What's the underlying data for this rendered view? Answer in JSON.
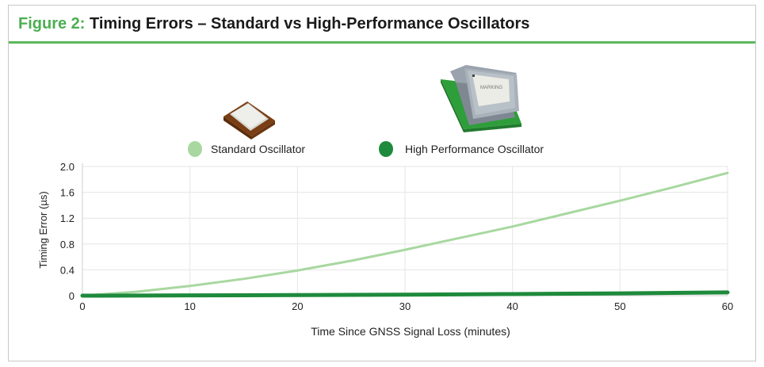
{
  "figure": {
    "label": "Figure 2:",
    "title": "Timing Errors – Standard vs High-Performance Oscillators"
  },
  "product_images": {
    "std_icon": "crystal-oscillator-package-icon",
    "hp_icon": "ocxo-module-icon",
    "hp_marking": "MARKING"
  },
  "chart_data": {
    "type": "line",
    "title": "",
    "xlabel": "Time Since GNSS Signal Loss (minutes)",
    "ylabel": "Timing Error (µs)",
    "xlim": [
      0,
      60
    ],
    "ylim": [
      0,
      2.0
    ],
    "x_ticks": [
      0,
      10,
      20,
      30,
      40,
      50,
      60
    ],
    "x_tick_labels": [
      "0",
      "10",
      "20",
      "30",
      "40",
      "50",
      "60"
    ],
    "y_ticks": [
      0,
      0.4,
      0.8,
      1.2,
      1.6,
      2.0
    ],
    "y_tick_labels": [
      "0",
      "0.4",
      "0.8",
      "1.2",
      "1.6",
      "2.0"
    ],
    "grid": true,
    "legend_position": "top-center",
    "x": [
      0,
      5,
      10,
      15,
      20,
      25,
      30,
      35,
      40,
      45,
      50,
      55,
      60
    ],
    "series": [
      {
        "name": "Standard Oscillator",
        "color": "#a8d8a0",
        "values": [
          0,
          0.06,
          0.15,
          0.26,
          0.39,
          0.54,
          0.71,
          0.89,
          1.07,
          1.27,
          1.47,
          1.68,
          1.9
        ]
      },
      {
        "name": "High Performance Oscillator",
        "color": "#1e8a3c",
        "values": [
          0,
          0.002,
          0.004,
          0.006,
          0.009,
          0.012,
          0.016,
          0.02,
          0.025,
          0.03,
          0.036,
          0.043,
          0.05
        ]
      }
    ]
  }
}
